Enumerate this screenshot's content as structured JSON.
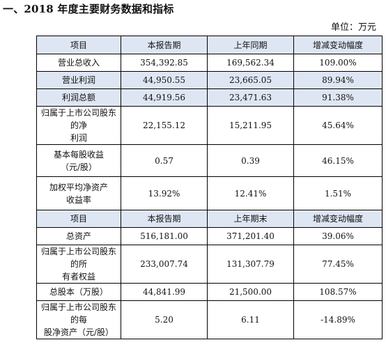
{
  "title": "一、2018 年度主要财务数据和指标",
  "unit": "单位：万元",
  "table1": {
    "header": [
      "项目",
      "本报告期",
      "上年同期",
      "增减变动幅度"
    ],
    "rows": [
      {
        "label": "营业总收入",
        "current": "354,392.85",
        "previous": "169,562.34",
        "change": "109.00%"
      },
      {
        "label": "营业利润",
        "current": "44,950.55",
        "previous": "23,665.05",
        "change": "89.94%"
      },
      {
        "label": "利润总额",
        "current": "44,919.56",
        "previous": "23,471.63",
        "change": "91.38%"
      },
      {
        "label": "归属于上市公司股东的净",
        "label2": "利润",
        "current": "22,155.12",
        "previous": "15,211.95",
        "change": "45.64%"
      },
      {
        "label": "基本每股收益",
        "label2": "（元/股）",
        "current": "0.57",
        "previous": "0.39",
        "change": "46.15%"
      },
      {
        "label": "加权平均净资产",
        "label2": "收益率",
        "current": "13.92%",
        "previous": "12.41%",
        "change": "1.51%"
      }
    ]
  },
  "table2": {
    "header": [
      "项目",
      "本报告期",
      "上年期末",
      "增减变动幅度"
    ],
    "rows": [
      {
        "label": "总资产",
        "current": "516,181.00",
        "previous": "371,201.40",
        "change": "39.06%"
      },
      {
        "label": "归属于上市公司股东的所",
        "label2": "有者权益",
        "current": "233,007.74",
        "previous": "131,307.79",
        "change": "77.45%"
      },
      {
        "label": "总股本（万股）",
        "current": "44,841.99",
        "previous": "21,500.00",
        "change": "108.57%"
      },
      {
        "label": "归属于上市公司股东的每",
        "label2": "股净资产（元/股）",
        "current": "5.20",
        "previous": "6.11",
        "change": "-14.89%"
      }
    ]
  }
}
